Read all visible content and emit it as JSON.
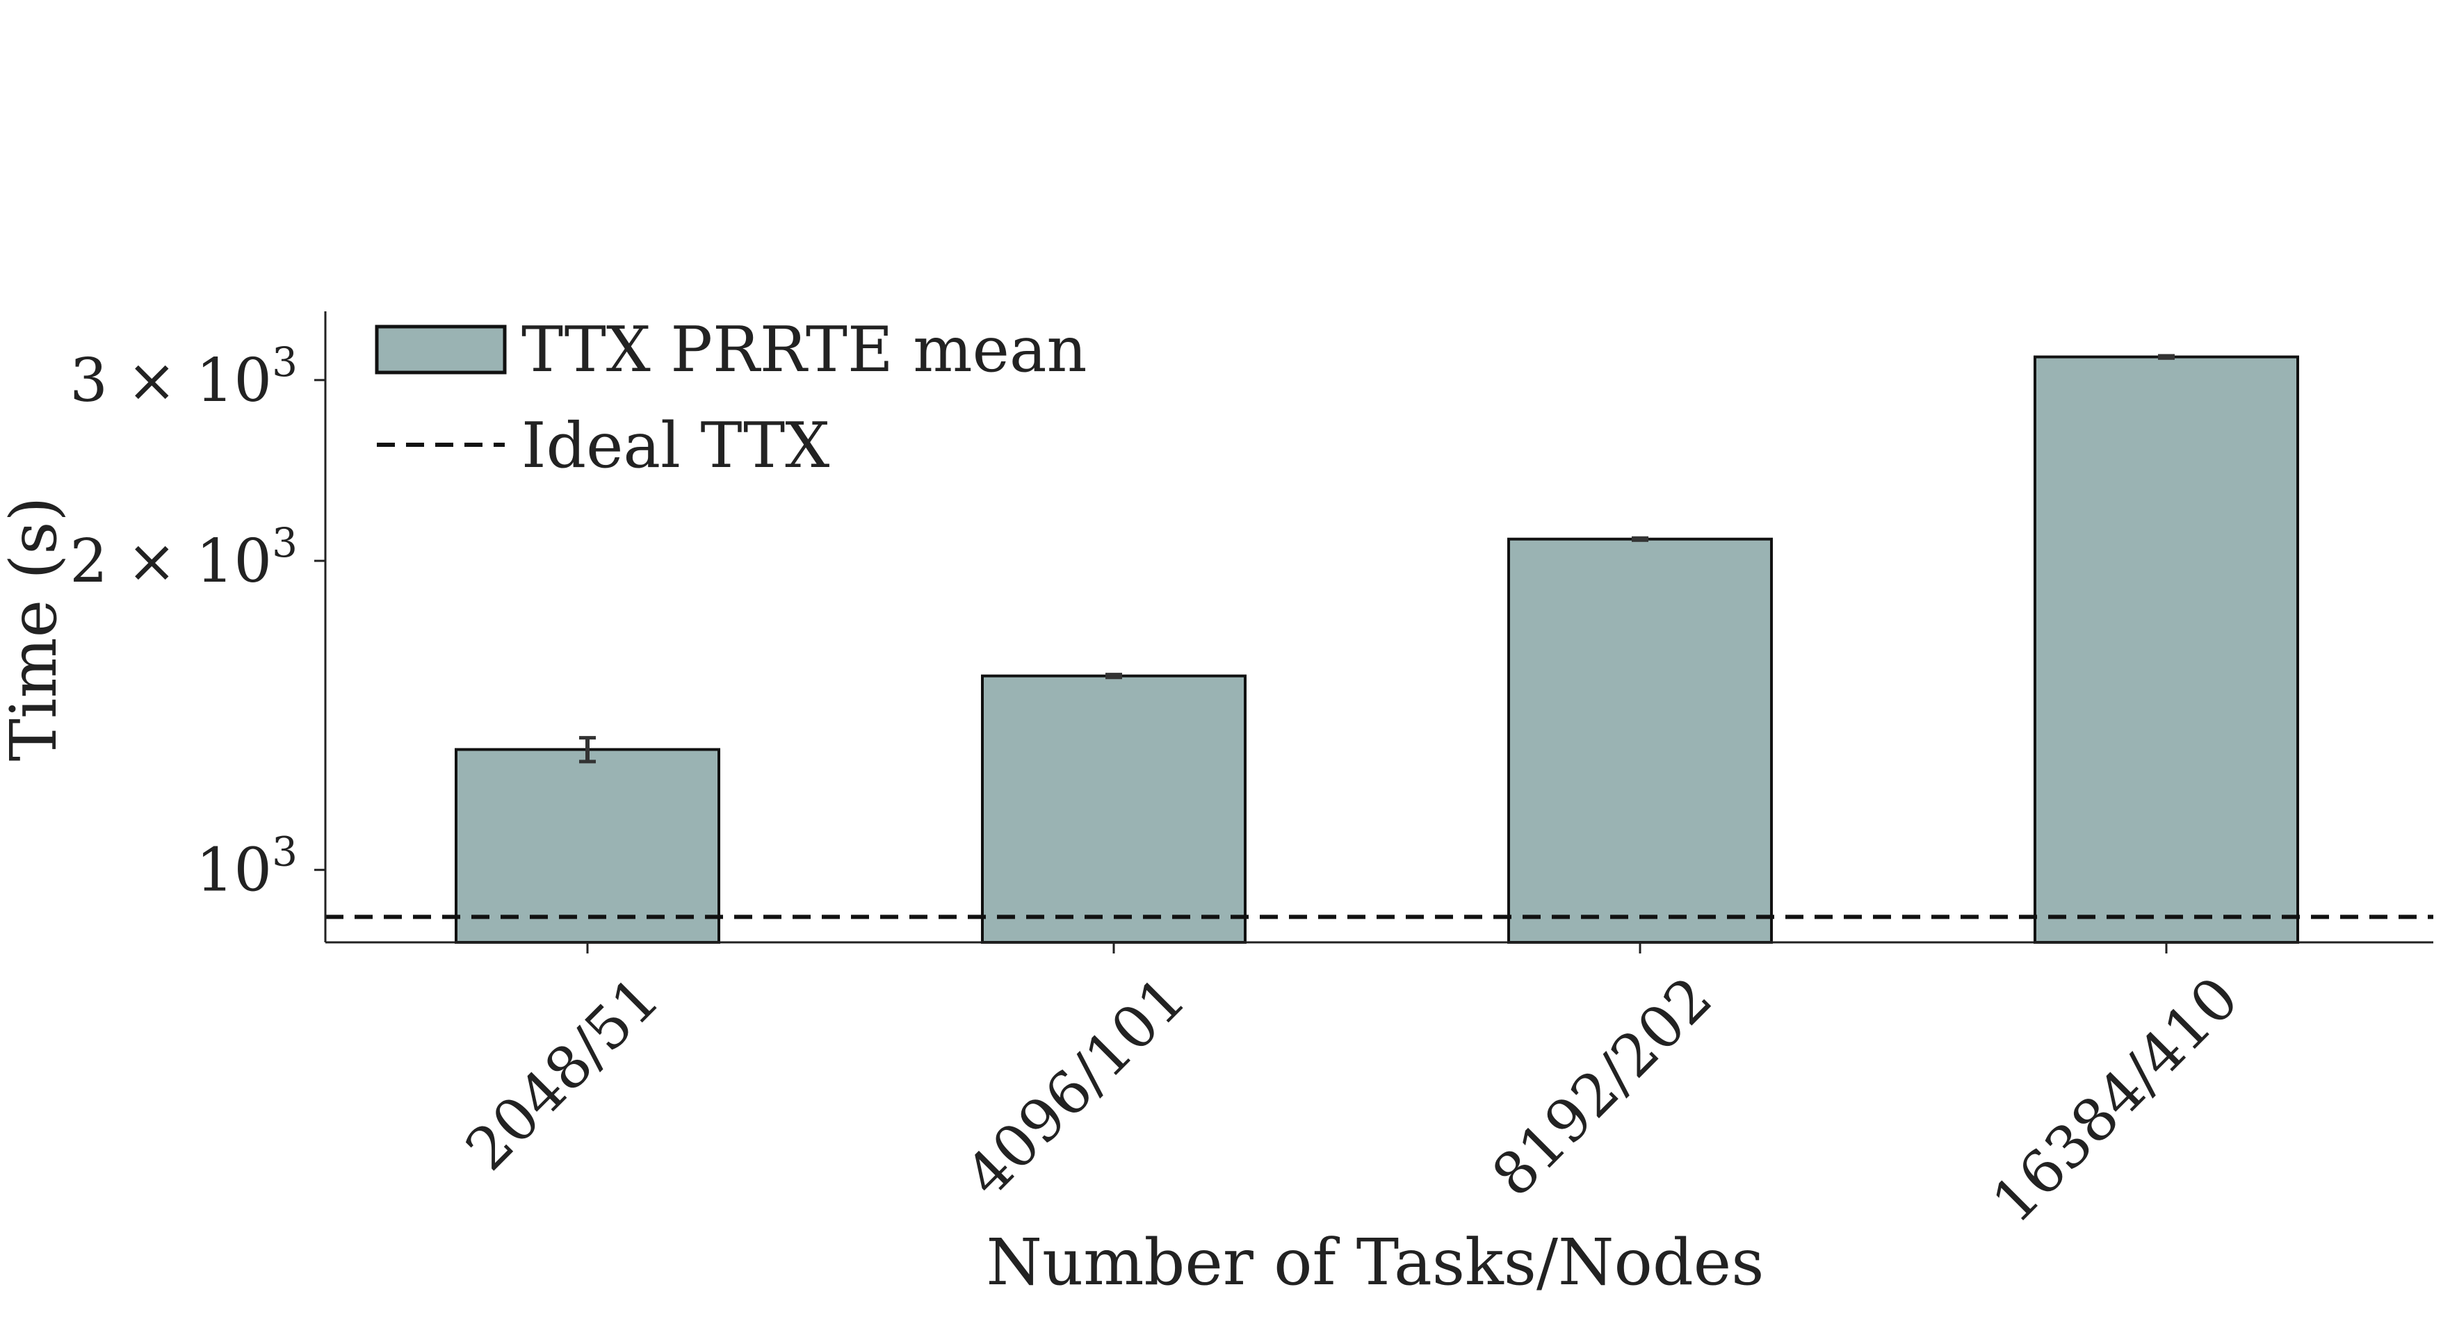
{
  "chart_data": {
    "type": "bar",
    "title": "",
    "xlabel": "Number of Tasks/Nodes",
    "ylabel": "Time (s)",
    "categories": [
      "2048/51",
      "4096/101",
      "8192/202",
      "16384/410"
    ],
    "series": [
      {
        "name": "TTX PRRTE mean",
        "values": [
          1310,
          1545,
          2100,
          3160
        ],
        "errors": [
          35,
          5,
          5,
          8
        ],
        "color": "#9ab3b3",
        "edge_color": "#111111"
      }
    ],
    "reference_line": {
      "name": "Ideal TTX",
      "value": 900,
      "style": "dashed",
      "color": "#111111"
    },
    "yscale": "log",
    "ylim": [
      850,
      3500
    ],
    "yticks": [
      {
        "value": 1000,
        "mantissa": "",
        "exponent": "3"
      },
      {
        "value": 2000,
        "mantissa": "2",
        "exponent": "3"
      },
      {
        "value": 3000,
        "mantissa": "3",
        "exponent": "3"
      }
    ],
    "ytick_separator": "×",
    "ytick_base": "10",
    "legend_position": "top-left",
    "grid": false
  }
}
